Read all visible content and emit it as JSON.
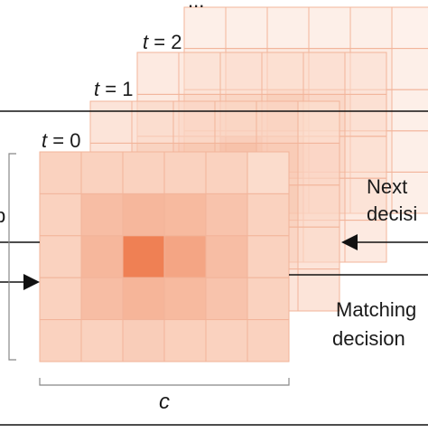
{
  "diagram": {
    "ellipsis": "...",
    "time_labels": [
      {
        "var": "t",
        "eq": " = ",
        "val": "2"
      },
      {
        "var": "t",
        "eq": " = ",
        "val": "1"
      },
      {
        "var": "t",
        "eq": " = ",
        "val": "0"
      }
    ],
    "next_label_line1": "Next",
    "next_label_line2": "decisi",
    "matching_label_line1": "Matching",
    "matching_label_line2": "decision",
    "left_partial_label": "b",
    "bottom_axis_label": "c"
  },
  "colors": {
    "grid_stroke": "#f2b49a",
    "line": "#111111"
  },
  "grids": {
    "rows": 5,
    "cols": 6,
    "front_intensity": [
      [
        0.18,
        0.18,
        0.18,
        0.18,
        0.18,
        0.1
      ],
      [
        0.18,
        0.35,
        0.4,
        0.38,
        0.3,
        0.18
      ],
      [
        0.18,
        0.4,
        0.85,
        0.55,
        0.35,
        0.18
      ],
      [
        0.18,
        0.35,
        0.42,
        0.38,
        0.3,
        0.18
      ],
      [
        0.18,
        0.18,
        0.22,
        0.2,
        0.18,
        0.18
      ]
    ]
  }
}
